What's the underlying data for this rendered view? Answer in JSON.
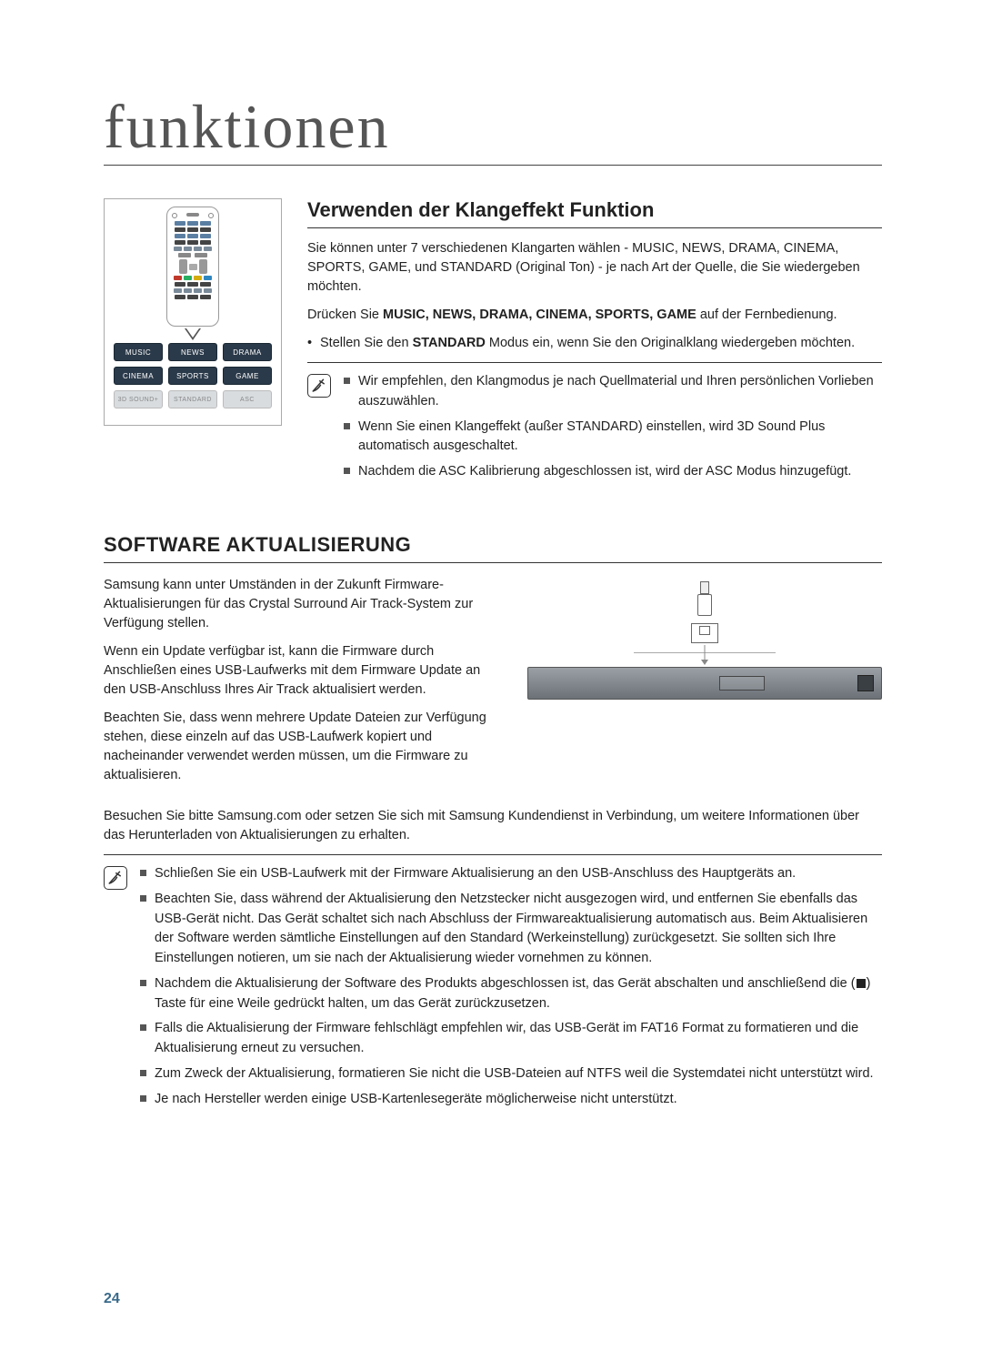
{
  "page_title": "funktionen",
  "page_number": "24",
  "remote": {
    "rows": [
      [
        "MUSIC",
        "NEWS",
        "DRAMA"
      ],
      [
        "CINEMA",
        "SPORTS",
        "GAME"
      ],
      [
        "3D SOUND+",
        "STANDARD",
        "ASC"
      ]
    ]
  },
  "section1": {
    "heading": "Verwenden der Klangeffekt Funktion",
    "intro": "Sie können unter 7 verschiedenen Klangarten wählen - MUSIC, NEWS, DRAMA, CINEMA, SPORTS, GAME, und STANDARD (Original Ton) - je nach Art der Quelle, die Sie wiedergeben möchten.",
    "instr_pre": "Drücken Sie ",
    "instr_bold": "MUSIC, NEWS, DRAMA, CINEMA, SPORTS, GAME",
    "instr_post": " auf der Fernbedienung.",
    "bullet_pre": "Stellen Sie den ",
    "bullet_bold": "STANDARD",
    "bullet_post": " Modus ein, wenn Sie den Originalklang wiedergeben möchten.",
    "notes": [
      "Wir empfehlen, den Klangmodus je nach Quellmaterial und Ihren persönlichen Vorlieben auszuwählen.",
      "Wenn Sie einen Klangeffekt (außer STANDARD) einstellen, wird 3D Sound Plus automatisch ausgeschaltet.",
      "Nachdem die ASC Kalibrierung abgeschlossen ist, wird der ASC Modus hinzugefügt."
    ]
  },
  "section2": {
    "heading": "SOFTWARE AKTUALISIERUNG",
    "paras": [
      "Samsung kann unter Umständen in der Zukunft Firmware- Aktualisierungen für das Crystal Surround Air Track-System zur Verfügung stellen.",
      "Wenn ein Update verfügbar ist, kann die Firmware durch Anschließen eines USB-Laufwerks mit dem Firmware Update an den USB-Anschluss Ihres Air Track aktualisiert werden.",
      "Beachten Sie, dass wenn mehrere Update Dateien zur Verfügung stehen, diese einzeln auf das USB-Laufwerk kopiert und nacheinander verwendet werden müssen, um die Firmware zu aktualisieren."
    ],
    "para_full": "Besuchen Sie bitte Samsung.com oder setzen Sie sich mit Samsung Kundendienst in Verbindung, um weitere Informationen über das Herunterladen von Aktualisierungen zu erhalten.",
    "notes": [
      "Schließen Sie ein USB-Laufwerk mit der Firmware Aktualisierung an den USB-Anschluss des Hauptgeräts an.",
      "Beachten Sie, dass während der Aktualisierung den Netzstecker nicht ausgezogen wird, und entfernen Sie ebenfalls das USB-Gerät nicht. Das Gerät schaltet sich nach Abschluss der Firmwareaktualisierung automatisch aus. Beim Aktualisieren der Software werden sämtliche Einstellungen auf den Standard (Werkeinstellung) zurückgesetzt. Sie sollten sich Ihre Einstellungen notieren, um sie nach der Aktualisierung wieder vornehmen zu können.",
      "__STOP__Nachdem die Aktualisierung der Software des Produkts abgeschlossen ist, das Gerät abschalten und anschließend die (■) Taste für eine Weile gedrückt halten, um das Gerät zurückzusetzen.",
      "Falls die Aktualisierung der Firmware fehlschlägt empfehlen wir, das USB-Gerät im FAT16 Format zu formatieren und die Aktualisierung erneut zu versuchen.",
      "Zum Zweck der Aktualisierung, formatieren Sie nicht die USB-Dateien auf NTFS weil die Systemdatei nicht unterstützt wird.",
      "Je nach Hersteller werden einige USB-Kartenlesegeräte möglicherweise nicht unterstützt."
    ]
  }
}
